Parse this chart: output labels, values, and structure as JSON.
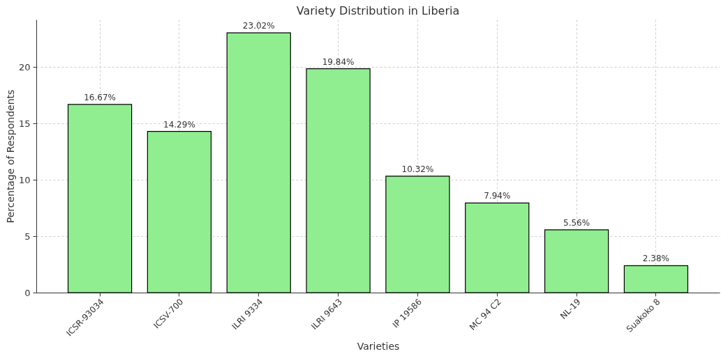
{
  "chart_data": {
    "type": "bar",
    "title": "Variety Distribution in Liberia",
    "xlabel": "Varieties",
    "ylabel": "Percentage of Respondents",
    "categories": [
      "ICSR-93034",
      "ICSV-700",
      "ILRI 9334",
      "ILRI 9643",
      "IP 19586",
      "MC 94 C2",
      "NL-19",
      "Suakoko 8"
    ],
    "values": [
      16.67,
      14.29,
      23.02,
      19.84,
      10.32,
      7.94,
      5.56,
      2.38
    ],
    "value_labels": [
      "16.67%",
      "14.29%",
      "23.02%",
      "19.84%",
      "10.32%",
      "7.94%",
      "5.56%",
      "2.38%"
    ],
    "color": "#90ee90",
    "ylim": [
      0,
      24.2
    ],
    "yticks": [
      0,
      5,
      10,
      15,
      20
    ],
    "grid": true
  }
}
